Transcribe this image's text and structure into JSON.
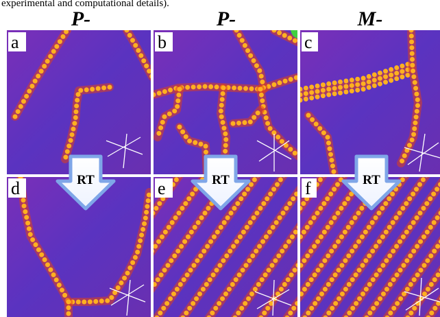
{
  "caption_fragment": "experimental and computational details).",
  "headers": [
    "P-",
    "P-",
    "M-"
  ],
  "panels": [
    "a",
    "b",
    "c",
    "d",
    "e",
    "f"
  ],
  "arrow_labels": [
    "RT",
    "RT",
    "RT"
  ]
}
